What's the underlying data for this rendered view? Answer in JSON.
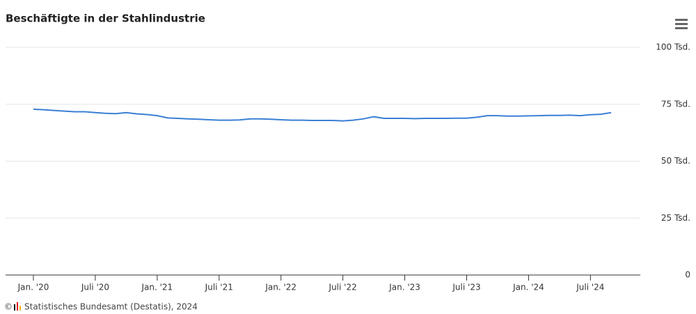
{
  "chart_data": {
    "type": "line",
    "title": "Beschäftigte in der Stahlindustrie",
    "credit_symbol": "©",
    "credit": "Statistisches Bundesamt (Destatis), 2024",
    "categories": [
      "Jan. '20",
      null,
      null,
      null,
      null,
      null,
      "Juli '20",
      null,
      null,
      null,
      null,
      null,
      "Jan. '21",
      null,
      null,
      null,
      null,
      null,
      "Juli '21",
      null,
      null,
      null,
      null,
      null,
      "Jan. '22",
      null,
      null,
      null,
      null,
      null,
      "Juli '22",
      null,
      null,
      null,
      null,
      null,
      "Jan. '23",
      null,
      null,
      null,
      null,
      null,
      "Juli '23",
      null,
      null,
      null,
      null,
      null,
      "Jan. '24",
      null,
      null,
      null,
      null,
      null,
      "Juli '24",
      null,
      null
    ],
    "series": [
      {
        "color": "#3a7fd5",
        "values": [
          72.8,
          72.6,
          72.3,
          72.0,
          71.7,
          71.7,
          71.3,
          71.0,
          70.9,
          71.3,
          70.8,
          70.5,
          70.0,
          69.0,
          68.8,
          68.6,
          68.4,
          68.2,
          68.0,
          68.0,
          68.1,
          68.6,
          68.6,
          68.4,
          68.2,
          68.0,
          68.0,
          67.9,
          67.9,
          67.9,
          67.7,
          68.0,
          68.6,
          69.5,
          68.8,
          68.8,
          68.8,
          68.7,
          68.8,
          68.8,
          68.8,
          68.9,
          68.9,
          69.3,
          70.0,
          70.0,
          69.8,
          69.8,
          69.9,
          70.0,
          70.1,
          70.1,
          70.2,
          70.0,
          70.4,
          70.6,
          71.3
        ]
      }
    ],
    "ylim": [
      0,
      100
    ],
    "yticks": [
      0,
      {
        "value": 25,
        "label": "25 Tsd."
      },
      {
        "value": 50,
        "label": "50 Tsd."
      },
      {
        "value": 75,
        "label": "75 Tsd."
      },
      {
        "value": 100,
        "label": "100 Tsd."
      }
    ],
    "grid": true
  }
}
